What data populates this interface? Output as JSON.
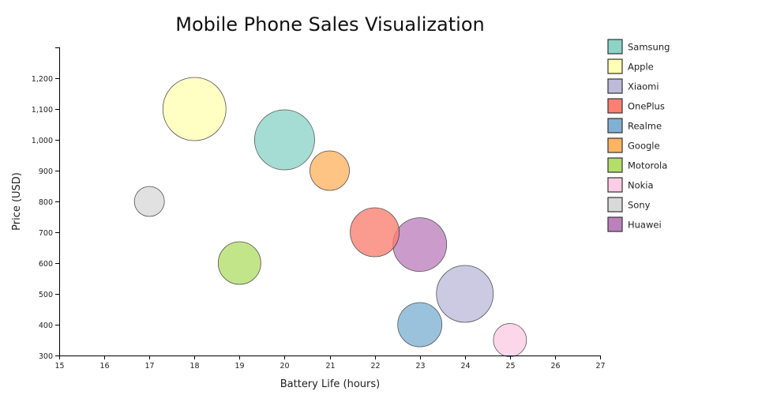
{
  "chart_data": {
    "type": "scatter",
    "title": "Mobile Phone Sales Visualization",
    "xlabel": "Battery Life (hours)",
    "ylabel": "Price (USD)",
    "xlim": [
      15,
      27
    ],
    "ylim": [
      300,
      1300
    ],
    "x_ticks": [
      15,
      16,
      17,
      18,
      19,
      20,
      21,
      22,
      23,
      24,
      25,
      26,
      27
    ],
    "y_ticks": [
      300,
      400,
      500,
      600,
      700,
      800,
      900,
      1000,
      1100,
      1200
    ],
    "y_tick_labels": [
      "300",
      "400",
      "500",
      "600",
      "700",
      "800",
      "900",
      "1,000",
      "1,100",
      "1,200"
    ],
    "legend_position": "right",
    "grid": false,
    "series": [
      {
        "name": "Samsung",
        "x": 20,
        "y": 1000,
        "size": 38,
        "color": "#8dd3c7"
      },
      {
        "name": "Apple",
        "x": 18,
        "y": 1100,
        "size": 40,
        "color": "#ffffb3"
      },
      {
        "name": "Xiaomi",
        "x": 24,
        "y": 500,
        "size": 36,
        "color": "#bebada"
      },
      {
        "name": "OnePlus",
        "x": 22,
        "y": 700,
        "size": 31,
        "color": "#fb8072"
      },
      {
        "name": "Realme",
        "x": 23,
        "y": 400,
        "size": 28,
        "color": "#80b1d3"
      },
      {
        "name": "Google",
        "x": 21,
        "y": 900,
        "size": 25,
        "color": "#fdb462"
      },
      {
        "name": "Motorola",
        "x": 19,
        "y": 600,
        "size": 27,
        "color": "#b3de69"
      },
      {
        "name": "Nokia",
        "x": 25,
        "y": 350,
        "size": 21,
        "color": "#fccde5"
      },
      {
        "name": "Sony",
        "x": 17,
        "y": 800,
        "size": 19,
        "color": "#d9d9d9"
      },
      {
        "name": "Huawei",
        "x": 23,
        "y": 660,
        "size": 34,
        "color": "#bc80bd"
      }
    ]
  }
}
